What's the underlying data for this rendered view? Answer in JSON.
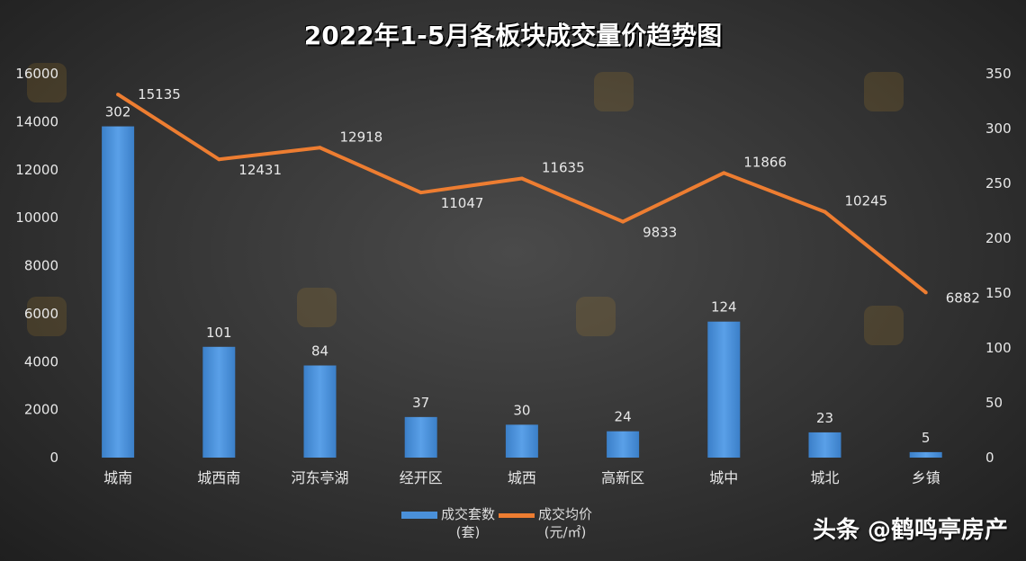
{
  "chart_data": {
    "type": "bar+line",
    "title": "2022年1-5月各板块成交量价趋势图",
    "categories": [
      "城南",
      "城西南",
      "河东亭湖",
      "经开区",
      "城西",
      "高新区",
      "城中",
      "城北",
      "乡镇"
    ],
    "series": [
      {
        "name": "成交套数（套）",
        "type": "bar",
        "axis": "right",
        "color": "#4a90d9",
        "values": [
          302,
          101,
          84,
          37,
          30,
          24,
          124,
          23,
          5
        ]
      },
      {
        "name": "成交均价（元/㎡）",
        "type": "line",
        "axis": "left",
        "color": "#ed7d31",
        "values": [
          15135,
          12431,
          12918,
          11047,
          11635,
          9833,
          11866,
          10245,
          6882
        ]
      }
    ],
    "left_axis": {
      "min": 0,
      "max": 16000,
      "ticks": [
        "0",
        "2000",
        "4000",
        "6000",
        "8000",
        "10000",
        "12000",
        "14000",
        "16000"
      ]
    },
    "right_axis": {
      "min": 0,
      "max": 350,
      "ticks": [
        "0",
        "50",
        "100",
        "150",
        "200",
        "250",
        "300",
        "350"
      ]
    },
    "grid": false,
    "legend_position": "bottom",
    "legend": [
      {
        "line1": "成交套数",
        "line2": "(套)"
      },
      {
        "line1": "成交均价",
        "line2": "(元/㎡)"
      }
    ]
  },
  "watermark": "头条 @鹤鸣亭房产"
}
